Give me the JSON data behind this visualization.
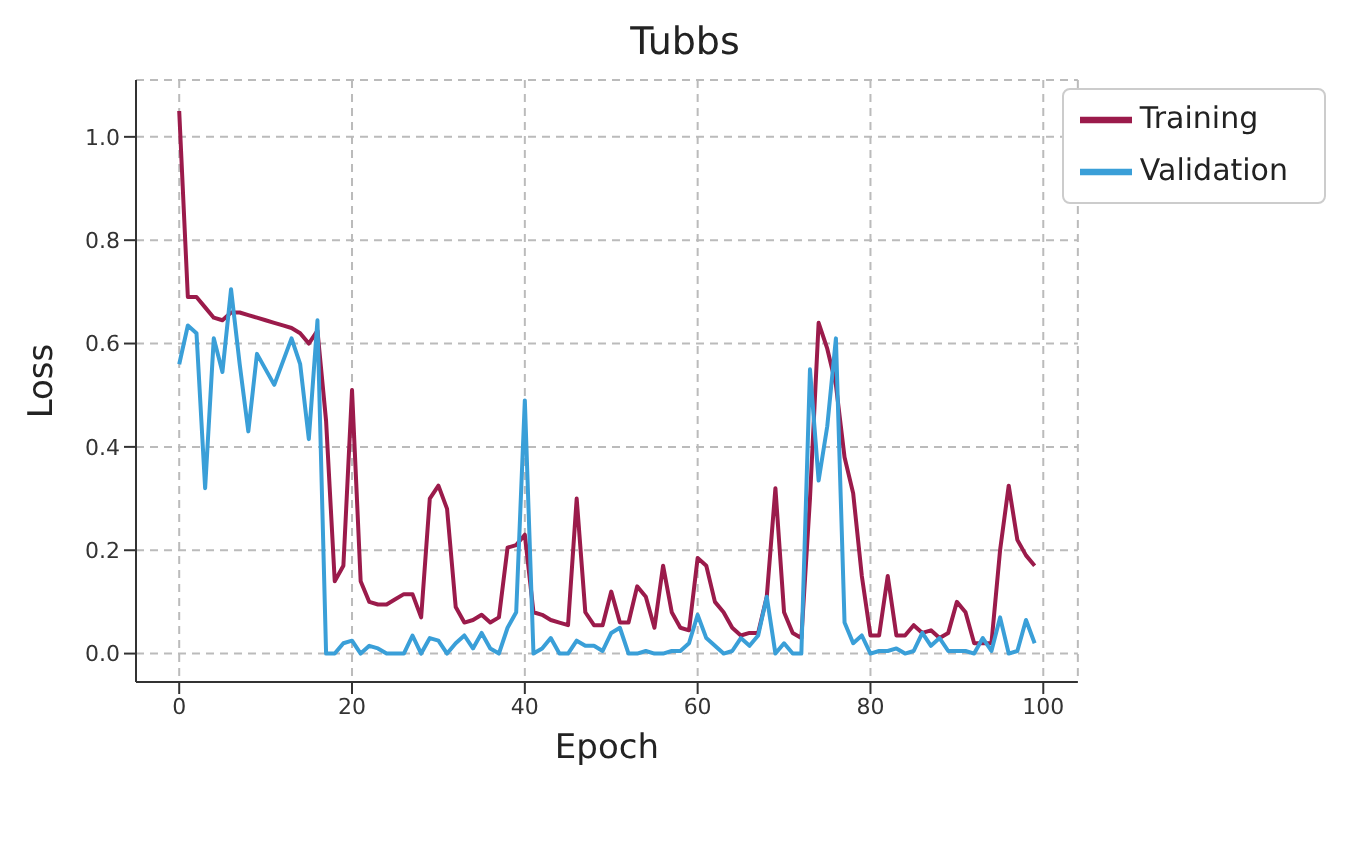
{
  "chart_data": {
    "type": "line",
    "title": "Tubbs",
    "xlabel": "Epoch",
    "ylabel": "Loss",
    "x": [
      0,
      1,
      2,
      3,
      4,
      5,
      6,
      7,
      8,
      9,
      10,
      11,
      12,
      13,
      14,
      15,
      16,
      17,
      18,
      19,
      20,
      21,
      22,
      23,
      24,
      25,
      26,
      27,
      28,
      29,
      30,
      31,
      32,
      33,
      34,
      35,
      36,
      37,
      38,
      39,
      40,
      41,
      42,
      43,
      44,
      45,
      46,
      47,
      48,
      49,
      50,
      51,
      52,
      53,
      54,
      55,
      56,
      57,
      58,
      59,
      60,
      61,
      62,
      63,
      64,
      65,
      66,
      67,
      68,
      69,
      70,
      71,
      72,
      73,
      74,
      75,
      76,
      77,
      78,
      79,
      80,
      81,
      82,
      83,
      84,
      85,
      86,
      87,
      88,
      89,
      90,
      91,
      92,
      93,
      94,
      95,
      96,
      97,
      98,
      99
    ],
    "series": [
      {
        "name": "Training",
        "color": "#9b1b4b",
        "values": [
          1.05,
          0.69,
          0.69,
          0.67,
          0.65,
          0.645,
          0.66,
          0.66,
          0.655,
          0.65,
          0.645,
          0.64,
          0.635,
          0.63,
          0.62,
          0.6,
          0.625,
          0.45,
          0.14,
          0.17,
          0.51,
          0.14,
          0.1,
          0.095,
          0.095,
          0.105,
          0.115,
          0.115,
          0.07,
          0.3,
          0.325,
          0.28,
          0.09,
          0.06,
          0.065,
          0.075,
          0.06,
          0.07,
          0.205,
          0.21,
          0.23,
          0.08,
          0.075,
          0.065,
          0.06,
          0.055,
          0.3,
          0.08,
          0.055,
          0.055,
          0.12,
          0.06,
          0.06,
          0.13,
          0.11,
          0.05,
          0.17,
          0.08,
          0.05,
          0.045,
          0.185,
          0.17,
          0.1,
          0.08,
          0.05,
          0.035,
          0.04,
          0.04,
          0.11,
          0.32,
          0.08,
          0.04,
          0.03,
          0.3,
          0.64,
          0.59,
          0.52,
          0.38,
          0.31,
          0.15,
          0.035,
          0.035,
          0.15,
          0.035,
          0.035,
          0.055,
          0.04,
          0.045,
          0.03,
          0.04,
          0.1,
          0.08,
          0.02,
          0.02,
          0.02,
          0.2,
          0.325,
          0.22,
          0.19,
          0.17
        ]
      },
      {
        "name": "Validation",
        "color": "#3a9fd8",
        "values": [
          0.56,
          0.635,
          0.62,
          0.32,
          0.61,
          0.545,
          0.705,
          0.56,
          0.43,
          0.58,
          0.55,
          0.52,
          0.565,
          0.61,
          0.56,
          0.415,
          0.645,
          0,
          0,
          0.02,
          0.025,
          0,
          0.015,
          0.01,
          0,
          0,
          0,
          0.035,
          0,
          0.03,
          0.025,
          0,
          0.02,
          0.035,
          0.01,
          0.04,
          0.01,
          0,
          0.05,
          0.08,
          0.49,
          0,
          0.01,
          0.03,
          0,
          0,
          0.025,
          0.015,
          0.015,
          0.005,
          0.04,
          0.05,
          0,
          0,
          0.005,
          0,
          0,
          0.005,
          0.005,
          0.02,
          0.075,
          0.03,
          0.015,
          0,
          0.005,
          0.03,
          0.015,
          0.035,
          0.11,
          0,
          0.02,
          0,
          0,
          0.55,
          0.335,
          0.44,
          0.61,
          0.06,
          0.02,
          0.035,
          0,
          0.005,
          0.005,
          0.01,
          0,
          0.005,
          0.04,
          0.015,
          0.03,
          0.005,
          0.005,
          0.005,
          0,
          0.03,
          0.005,
          0.07,
          0,
          0.005,
          0.065,
          0.02
        ]
      }
    ],
    "xlim": [
      -5,
      104
    ],
    "xticks": [
      0,
      20,
      40,
      60,
      80,
      100
    ],
    "ylim": [
      -0.055,
      1.11
    ],
    "yticks": [
      {
        "value": 0,
        "label": "0.0"
      },
      {
        "value": 0.2,
        "label": "0.2"
      },
      {
        "value": 0.4,
        "label": "0.4"
      },
      {
        "value": 0.6,
        "label": "0.6"
      },
      {
        "value": 0.8,
        "label": "0.8"
      },
      {
        "value": 1,
        "label": "1.0"
      }
    ],
    "grid": true,
    "legend": "top right",
    "marker": "none",
    "line_style": "solid"
  }
}
